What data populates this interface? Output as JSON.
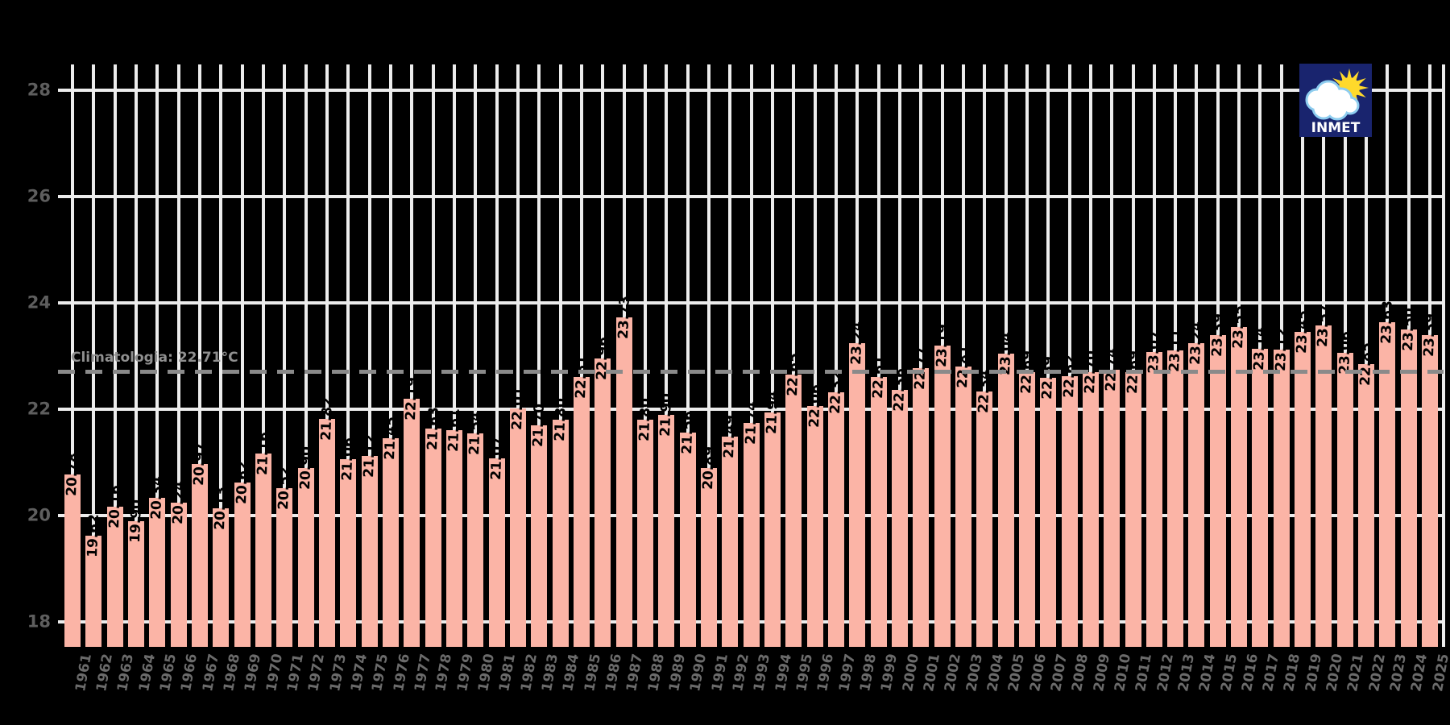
{
  "annotations": {
    "climatology_label": "Climatologia: 22.71°C"
  },
  "logo": {
    "name": "INMET",
    "text": "INMET",
    "bg_color": "#19246e",
    "sun_color": "#ffd92b",
    "cloud_color": "#ffffff",
    "cloud_outline_color": "#8ecdef",
    "text_color": "#ffffff"
  },
  "colors": {
    "background": "#000000",
    "bar": "#fbb4a6",
    "gridline": "#ececec",
    "climatology_line": "#8a8a8a",
    "bar_label": "#000000",
    "ytick_label": "#5e5e5e",
    "xtick_label": "#6b6b6b"
  },
  "chart_data": {
    "type": "bar",
    "title": "",
    "xlabel": "",
    "ylabel": "",
    "unit": "°C",
    "grid": true,
    "ylim": [
      17.0,
      28.6
    ],
    "yticks": [
      18,
      20,
      22,
      24,
      26,
      28
    ],
    "climatology_value": 22.71,
    "categories": [
      1961,
      1962,
      1963,
      1964,
      1965,
      1966,
      1967,
      1968,
      1969,
      1970,
      1971,
      1972,
      1973,
      1974,
      1975,
      1976,
      1977,
      1978,
      1979,
      1980,
      1981,
      1982,
      1983,
      1984,
      1985,
      1986,
      1987,
      1988,
      1989,
      1990,
      1991,
      1992,
      1993,
      1994,
      1995,
      1996,
      1997,
      1998,
      1999,
      2000,
      2001,
      2002,
      2003,
      2004,
      2005,
      2006,
      2007,
      2008,
      2009,
      2010,
      2011,
      2012,
      2013,
      2014,
      2015,
      2016,
      2017,
      2018,
      2019,
      2020,
      2021,
      2022,
      2023,
      2024,
      2025
    ],
    "values": [
      20.78,
      19.62,
      20.16,
      19.9,
      20.34,
      20.24,
      20.97,
      20.13,
      20.62,
      21.16,
      20.52,
      20.9,
      21.82,
      21.06,
      21.12,
      21.45,
      22.19,
      21.63,
      21.61,
      21.54,
      21.07,
      22.01,
      21.7,
      21.8,
      22.61,
      22.96,
      23.73,
      21.8,
      21.9,
      21.56,
      20.89,
      21.49,
      21.74,
      21.94,
      22.65,
      22.06,
      22.32,
      23.24,
      22.61,
      22.36,
      22.77,
      23.19,
      22.81,
      22.34,
      23.04,
      22.69,
      22.59,
      22.62,
      22.7,
      22.74,
      22.69,
      23.07,
      23.11,
      23.24,
      23.39,
      23.55,
      23.14,
      23.12,
      23.45,
      23.57,
      23.06,
      22.85,
      23.63,
      23.5,
      23.39
    ]
  }
}
